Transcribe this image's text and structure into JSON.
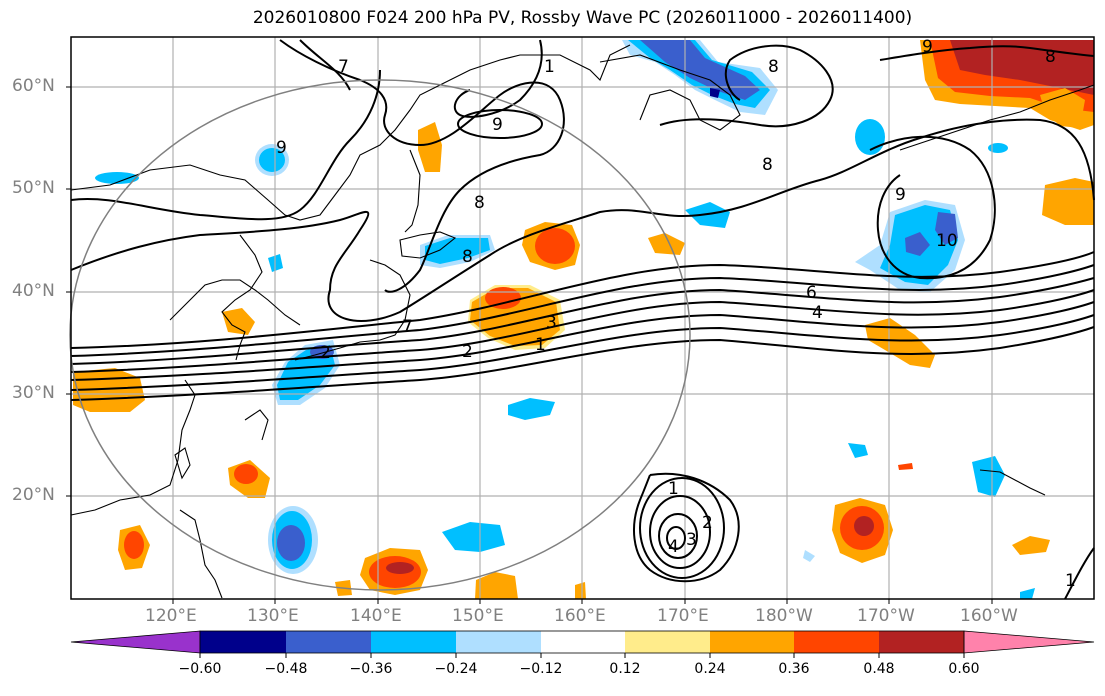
{
  "title": "2026010800 F024 200 hPa PV, Rossby Wave PC (2026011000 - 2026011400)",
  "lat_labels": [
    "60°N",
    "50°N",
    "40°N",
    "30°N",
    "20°N"
  ],
  "lon_labels": [
    "120°E",
    "130°E",
    "140°E",
    "150°E",
    "160°E",
    "170°E",
    "180°W",
    "170°W",
    "160°W"
  ],
  "colorbar": {
    "ticks": [
      "−0.60",
      "−0.48",
      "−0.36",
      "−0.24",
      "−0.12",
      "0.12",
      "0.24",
      "0.36",
      "0.48",
      "0.60"
    ],
    "colors": [
      "#9932cc",
      "#00008b",
      "#3a5fcd",
      "#00bfff",
      "#afdfff",
      "#ffffff",
      "#ffec8b",
      "#ffa500",
      "#ff4500",
      "#b22222",
      "#ff82ab"
    ]
  },
  "contour_labels": [
    "7",
    "1",
    "9",
    "8",
    "9",
    "8",
    "8",
    "9",
    "8",
    "8",
    "6",
    "4",
    "7",
    "3",
    "2",
    "1",
    "2",
    "9",
    "10",
    "1",
    "2",
    "3",
    "4",
    "1"
  ],
  "colors": {
    "frame": "#000000",
    "grid": "#b0b0b0",
    "circle": "#808080",
    "contour": "#000000"
  }
}
